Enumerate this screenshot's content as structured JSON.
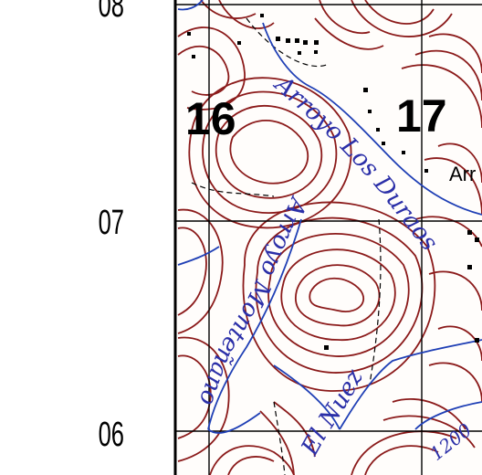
{
  "map": {
    "grid_labels": {
      "top": "08",
      "middle": "07",
      "bottom": "06"
    },
    "sections": {
      "left": "16",
      "right": "17"
    },
    "streams": {
      "los_duraos": "Arroyo Los Duraos",
      "montenano": "Arroyo Monteñano",
      "el_nuez": "El Nuez"
    },
    "place_partial": "Arr",
    "contour_label": "1200",
    "colors": {
      "contour": "#8b1a1a",
      "stream": "#1f3fb5",
      "grid": "#000000",
      "background": "#ffffff"
    }
  }
}
